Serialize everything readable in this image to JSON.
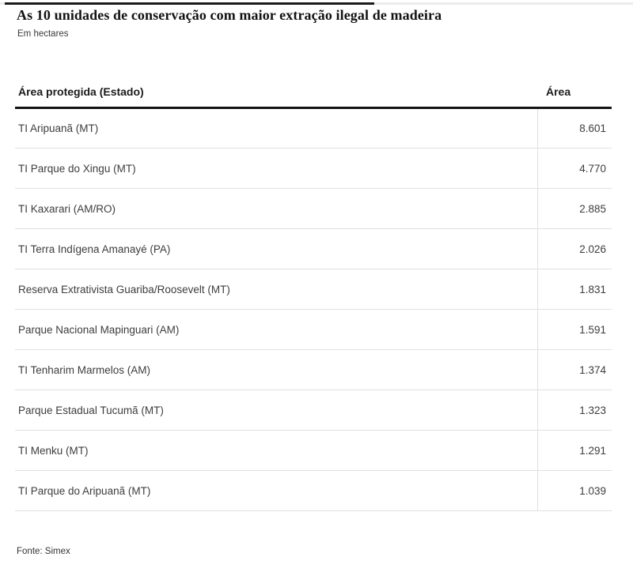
{
  "chart_data": {
    "type": "table",
    "title": "As 10 unidades de conservação com maior extração ilegal de madeira",
    "subtitle": "Em hectares",
    "columns": [
      "Área protegida (Estado)",
      "Área"
    ],
    "rows": [
      {
        "label": "TI Aripuanã (MT)",
        "value": 8601,
        "value_label": "8.601"
      },
      {
        "label": "TI Parque do Xingu (MT)",
        "value": 4770,
        "value_label": "4.770"
      },
      {
        "label": "TI Kaxarari (AM/RO)",
        "value": 2885,
        "value_label": "2.885"
      },
      {
        "label": "TI Terra Indígena Amanayé (PA)",
        "value": 2026,
        "value_label": "2.026"
      },
      {
        "label": "Reserva Extrativista Guariba/Roosevelt (MT)",
        "value": 1831,
        "value_label": "1.831"
      },
      {
        "label": "Parque Nacional Mapinguari (AM)",
        "value": 1591,
        "value_label": "1.591"
      },
      {
        "label": "TI Tenharim Marmelos (AM)",
        "value": 1374,
        "value_label": "1.374"
      },
      {
        "label": "Parque Estadual Tucumã (MT)",
        "value": 1323,
        "value_label": "1.323"
      },
      {
        "label": "TI Menku (MT)",
        "value": 1291,
        "value_label": "1.291"
      },
      {
        "label": "TI Parque do Aripuanã (MT)",
        "value": 1039,
        "value_label": "1.039"
      }
    ],
    "source": "Fonte: Simex",
    "layout_hints": {
      "value_column_alignment": "right",
      "thousands_separator": ".",
      "grid": "horizontal-row-separators",
      "header_rule_color": "#141414",
      "separator_color": "#e0e0e0"
    }
  },
  "colors": {
    "background": "#ffffff",
    "title_text": "#121212",
    "body_text": "#3d3d3d",
    "accent_rule": "#1a1a1a",
    "light_rule": "#ececec"
  }
}
